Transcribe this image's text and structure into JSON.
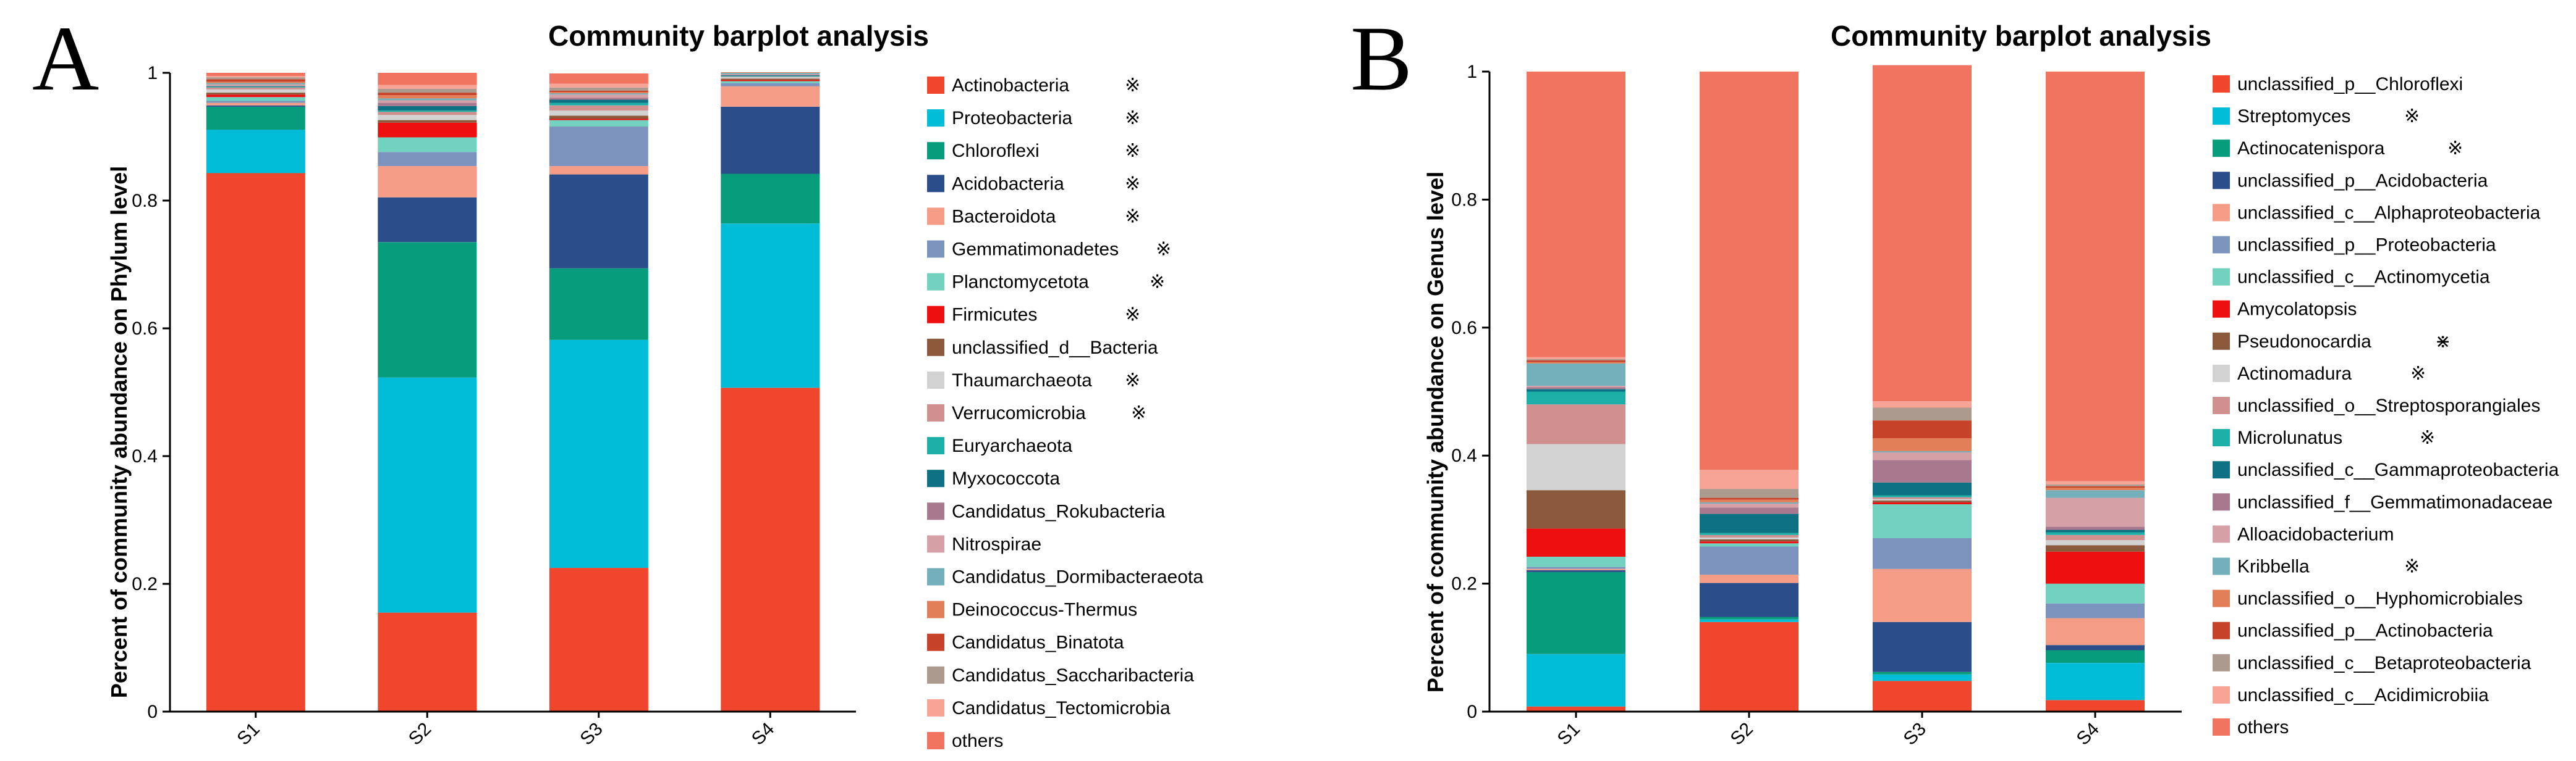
{
  "chart_data": [
    {
      "type": "bar",
      "stacked": true,
      "panel_label": "A",
      "title": "Community barplot analysis",
      "xlabel": "",
      "ylabel": "Percent of community abundance on Phylum level",
      "ylim": [
        0,
        1
      ],
      "yticks": [
        0,
        0.2,
        0.4,
        0.6,
        0.8,
        1
      ],
      "yticklabels": [
        "0",
        "0.2",
        "0.4",
        "0.6",
        "0.8",
        "1"
      ],
      "categories": [
        "S1",
        "S2",
        "S3",
        "S4"
      ],
      "legend_position": "right",
      "series": [
        {
          "name": "Actinobacteria",
          "color": "#F0462E",
          "mark": "※",
          "values": [
            0.843,
            0.155,
            0.225,
            0.507
          ]
        },
        {
          "name": "Proteobacteria",
          "color": "#00BCD6",
          "mark": "※",
          "values": [
            0.068,
            0.368,
            0.357,
            0.257
          ]
        },
        {
          "name": "Chloroflexi",
          "color": "#079C7C",
          "mark": "※",
          "values": [
            0.036,
            0.212,
            0.112,
            0.078
          ]
        },
        {
          "name": "Acidobacteria",
          "color": "#2B4E8A",
          "mark": "※",
          "values": [
            0.002,
            0.07,
            0.147,
            0.105
          ]
        },
        {
          "name": "Bacteroidota",
          "color": "#F59C86",
          "mark": "※",
          "values": [
            0.004,
            0.049,
            0.013,
            0.032
          ]
        },
        {
          "name": "Gemmatimonadetes",
          "color": "#7C93BD",
          "mark": "※",
          "values": [
            0.003,
            0.022,
            0.062,
            0.005
          ]
        },
        {
          "name": "Planctomycetota",
          "color": "#72D2BF",
          "mark": "※",
          "values": [
            0.006,
            0.023,
            0.01,
            0.003
          ]
        },
        {
          "name": "Firmicutes",
          "color": "#EE1010",
          "mark": "※",
          "values": [
            0.004,
            0.023,
            0.002,
            0.002
          ]
        },
        {
          "name": "unclassified_d__Bacteria",
          "color": "#8B5A3C",
          "mark": "",
          "values": [
            0.003,
            0.004,
            0.005,
            0.002
          ]
        },
        {
          "name": "Thaumarchaeota",
          "color": "#D2D2D2",
          "mark": "※",
          "values": [
            0.005,
            0.008,
            0.008,
            0.002
          ]
        },
        {
          "name": "Verrucomicrobia",
          "color": "#D09090",
          "mark": "※",
          "values": [
            0.003,
            0.005,
            0.008,
            0.001
          ]
        },
        {
          "name": "Euryarchaeota",
          "color": "#1BAFA8",
          "mark": "",
          "values": [
            0.001,
            0.002,
            0.004,
            0.001
          ]
        },
        {
          "name": "Myxococcota",
          "color": "#0E7183",
          "mark": "",
          "values": [
            0.001,
            0.007,
            0.005,
            0.001
          ]
        },
        {
          "name": "Candidatus_Rokubacteria",
          "color": "#A7788E",
          "mark": "",
          "values": [
            0.001,
            0.005,
            0.003,
            0.001
          ]
        },
        {
          "name": "Nitrospirae",
          "color": "#D5A1A7",
          "mark": "",
          "values": [
            0.002,
            0.004,
            0.005,
            0.001
          ]
        },
        {
          "name": "Candidatus_Dormibacteraeota",
          "color": "#74B0BC",
          "mark": "",
          "values": [
            0.002,
            0.003,
            0.002,
            0.002
          ]
        },
        {
          "name": "Deinococcus-Thermus",
          "color": "#E37F58",
          "mark": "",
          "values": [
            0.002,
            0.005,
            0.002,
            0.001
          ]
        },
        {
          "name": "Candidatus_Binatota",
          "color": "#C6432A",
          "mark": "",
          "values": [
            0.004,
            0.004,
            0.002,
            0.0
          ]
        },
        {
          "name": "Candidatus_Saccharibacteria",
          "color": "#AD9A8E",
          "mark": "",
          "values": [
            0.003,
            0.006,
            0.005,
            0.0
          ]
        },
        {
          "name": "Candidatus_Tectomicrobia",
          "color": "#F7A497",
          "mark": "",
          "values": [
            0.002,
            0.006,
            0.006,
            0.0
          ]
        },
        {
          "name": "others",
          "color": "#F07460",
          "mark": "",
          "values": [
            0.005,
            0.019,
            0.016,
            0.0
          ]
        }
      ]
    },
    {
      "type": "bar",
      "stacked": true,
      "panel_label": "B",
      "title": "Community barplot analysis",
      "xlabel": "",
      "ylabel": "Percent of community abundance on Genus level",
      "ylim": [
        0,
        1
      ],
      "yticks": [
        0,
        0.2,
        0.4,
        0.6,
        0.8,
        1
      ],
      "yticklabels": [
        "0",
        "0.2",
        "0.4",
        "0.6",
        "0.8",
        "1"
      ],
      "categories": [
        "S1",
        "S2",
        "S3",
        "S4"
      ],
      "legend_position": "right",
      "series": [
        {
          "name": "unclassified_p__Chloroflexi",
          "color": "#F0462E",
          "mark": "",
          "values": [
            0.008,
            0.14,
            0.048,
            0.018
          ]
        },
        {
          "name": "Streptomyces",
          "color": "#00BCD6",
          "mark": "※",
          "values": [
            0.082,
            0.004,
            0.01,
            0.058
          ]
        },
        {
          "name": "Actinocatenispora",
          "color": "#079C7C",
          "mark": "※",
          "values": [
            0.128,
            0.004,
            0.004,
            0.02
          ]
        },
        {
          "name": "unclassified_p__Acidobacteria",
          "color": "#2B4E8A",
          "mark": "",
          "values": [
            0.003,
            0.053,
            0.078,
            0.008
          ]
        },
        {
          "name": "unclassified_c__Alphaproteobacteria",
          "color": "#F59C86",
          "mark": "",
          "values": [
            0.002,
            0.013,
            0.083,
            0.042
          ]
        },
        {
          "name": "unclassified_p__Proteobacteria",
          "color": "#7C93BD",
          "mark": "",
          "values": [
            0.003,
            0.044,
            0.048,
            0.023
          ]
        },
        {
          "name": "unclassified_c__Actinomycetia",
          "color": "#72D2BF",
          "mark": "",
          "values": [
            0.016,
            0.005,
            0.053,
            0.031
          ]
        },
        {
          "name": "Amycolatopsis",
          "color": "#EE1010",
          "mark": "",
          "values": [
            0.044,
            0.003,
            0.003,
            0.05
          ]
        },
        {
          "name": "Pseudonocardia",
          "color": "#8B5A3C",
          "mark": "⋇",
          "values": [
            0.06,
            0.003,
            0.003,
            0.01
          ]
        },
        {
          "name": "Actinomadura",
          "color": "#D2D2D2",
          "mark": "※",
          "values": [
            0.072,
            0.003,
            0.002,
            0.008
          ]
        },
        {
          "name": "unclassified_o__Streptosporangiales",
          "color": "#D09090",
          "mark": "",
          "values": [
            0.062,
            0.004,
            0.003,
            0.008
          ]
        },
        {
          "name": "Microlunatus",
          "color": "#1BAFA8",
          "mark": "※",
          "values": [
            0.02,
            0.003,
            0.003,
            0.004
          ]
        },
        {
          "name": "unclassified_c__Gammaproteobacteria",
          "color": "#0E7183",
          "mark": "",
          "values": [
            0.004,
            0.03,
            0.02,
            0.004
          ]
        },
        {
          "name": "unclassified_f__Gemmatimonadaceae",
          "color": "#A7788E",
          "mark": "",
          "values": [
            0.003,
            0.01,
            0.035,
            0.005
          ]
        },
        {
          "name": "Alloacidobacterium",
          "color": "#D5A1A7",
          "mark": "",
          "values": [
            0.002,
            0.006,
            0.012,
            0.045
          ]
        },
        {
          "name": "Kribbella",
          "color": "#74B0BC",
          "mark": "※",
          "values": [
            0.035,
            0.002,
            0.002,
            0.012
          ]
        },
        {
          "name": "unclassified_o__Hyphomicrobiales",
          "color": "#E37F58",
          "mark": "",
          "values": [
            0.002,
            0.004,
            0.02,
            0.004
          ]
        },
        {
          "name": "unclassified_p__Actinobacteria",
          "color": "#C6432A",
          "mark": "",
          "values": [
            0.003,
            0.003,
            0.028,
            0.002
          ]
        },
        {
          "name": "unclassified_c__Betaproteobacteria",
          "color": "#AD9A8E",
          "mark": "",
          "values": [
            0.002,
            0.014,
            0.02,
            0.003
          ]
        },
        {
          "name": "unclassified_c__Acidimicrobiia",
          "color": "#F7A497",
          "mark": "",
          "values": [
            0.003,
            0.03,
            0.01,
            0.005
          ]
        },
        {
          "name": "others",
          "color": "#F07460",
          "mark": "",
          "values": [
            0.446,
            0.622,
            0.525,
            0.64
          ]
        }
      ]
    }
  ]
}
